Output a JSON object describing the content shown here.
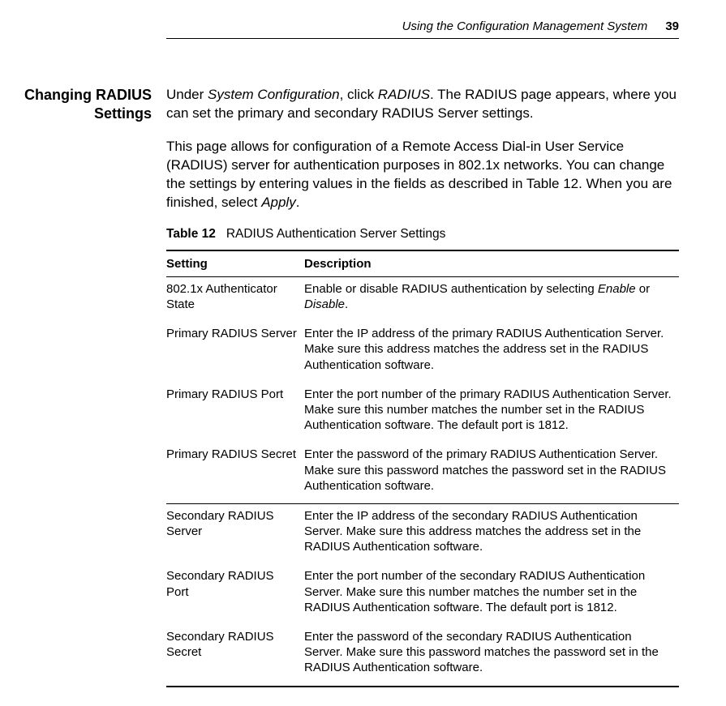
{
  "header": {
    "running_title": "Using the Configuration Management System",
    "page_number": "39"
  },
  "sidebar": {
    "heading_line1": "Changing RADIUS",
    "heading_line2": "Settings"
  },
  "body": {
    "p1_pre": "Under ",
    "p1_i1": "System Configuration",
    "p1_mid": ", click ",
    "p1_i2": "RADIUS",
    "p1_post": ". The RADIUS page appears, where you can set the primary and secondary RADIUS Server settings.",
    "p2_main": "This page allows for configuration of a Remote Access Dial-in User Service (RADIUS) server for authentication purposes in 802.1x networks. You can change the settings by entering values in the fields as described in Table 12. When you are finished, select ",
    "p2_i1": "Apply",
    "p2_post": "."
  },
  "table": {
    "caption_label": "Table 12",
    "caption_text": "RADIUS Authentication Server Settings",
    "col1": "Setting",
    "col2": "Description",
    "rows": [
      {
        "setting": "802.1x Authenticator State",
        "desc_pre": "Enable or disable RADIUS authentication by selecting ",
        "desc_i1": "Enable",
        "desc_mid": " or ",
        "desc_i2": "Disable",
        "desc_post": ".",
        "group_start": false
      },
      {
        "setting": "Primary RADIUS Server",
        "desc_pre": "Enter the IP address of the primary RADIUS Authentication Server. Make sure this address matches the address set in the RADIUS Authentication software.",
        "group_start": false
      },
      {
        "setting": "Primary RADIUS Port",
        "desc_pre": "Enter the port number of the primary RADIUS Authentication Server. Make sure this number matches the number set in the RADIUS Authentication software. The default port is 1812.",
        "group_start": false
      },
      {
        "setting": "Primary RADIUS Secret",
        "desc_pre": "Enter the password of the primary RADIUS Authentication Server. Make sure this password matches the password set in the RADIUS Authentication software.",
        "group_start": false
      },
      {
        "setting": "Secondary RADIUS Server",
        "desc_pre": "Enter the IP address of the secondary RADIUS Authentication Server. Make sure this address matches the address set in the RADIUS Authentication software.",
        "group_start": true
      },
      {
        "setting": "Secondary RADIUS Port",
        "desc_pre": "Enter the port number of the secondary RADIUS Authentication Server. Make sure this number matches the number set in the RADIUS Authentication software. The default port is 1812.",
        "group_start": false
      },
      {
        "setting": "Secondary RADIUS Secret",
        "desc_pre": "Enter the password of the secondary RADIUS Authentication Server. Make sure this password matches the password set in the RADIUS Authentication software.",
        "group_start": false
      }
    ]
  }
}
